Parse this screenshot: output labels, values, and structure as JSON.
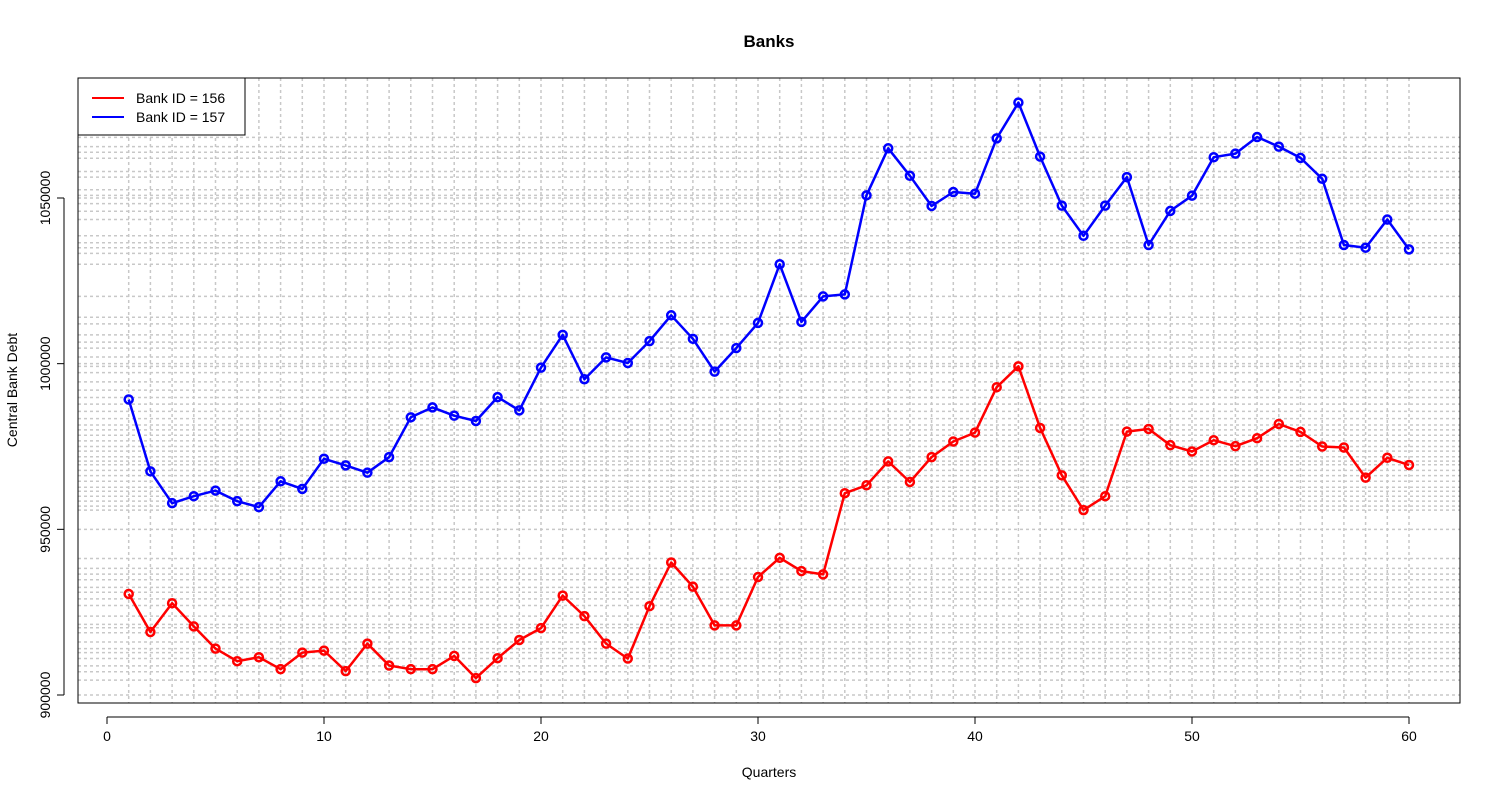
{
  "chart_data": {
    "type": "line",
    "title": "Banks",
    "xlabel": "Quarters",
    "ylabel": "Central Bank Debt",
    "xlim": [
      0,
      63
    ],
    "ylim": [
      898000,
      1087000
    ],
    "x_ticks": [
      0,
      10,
      20,
      30,
      40,
      50,
      60
    ],
    "x_tick_labels": [
      "0",
      "10",
      "20",
      "30",
      "40",
      "50",
      "60"
    ],
    "y_ticks": [
      900000,
      950000,
      1000000,
      1050000
    ],
    "y_tick_labels": [
      "900000",
      "950000",
      "1000000",
      "1050000"
    ],
    "grid": true,
    "legend": {
      "position": "top-left",
      "entries": [
        "Bank ID = 156",
        "Bank ID = 157"
      ]
    },
    "x": [
      1,
      2,
      3,
      4,
      5,
      6,
      7,
      8,
      9,
      10,
      11,
      12,
      13,
      14,
      15,
      16,
      17,
      18,
      19,
      20,
      21,
      22,
      23,
      24,
      25,
      26,
      27,
      28,
      29,
      30,
      31,
      32,
      33,
      34,
      35,
      36,
      37,
      38,
      39,
      40,
      41,
      42,
      43,
      44,
      45,
      46,
      47,
      48,
      49,
      50,
      51,
      52,
      53,
      54,
      55,
      56,
      57,
      58,
      59,
      60
    ],
    "series": [
      {
        "name": "Bank ID = 156",
        "color": "#ff0000",
        "values": [
          930500,
          919000,
          927700,
          920700,
          914000,
          910200,
          911400,
          907800,
          912800,
          913400,
          907200,
          915500,
          908900,
          907800,
          907800,
          911800,
          905100,
          911100,
          916600,
          920200,
          930000,
          923800,
          915500,
          911000,
          926800,
          940000,
          932700,
          921000,
          921000,
          935600,
          941400,
          937400,
          936400,
          960900,
          963300,
          970500,
          964300,
          971800,
          976500,
          979200,
          992900,
          999200,
          980600,
          966300,
          955800,
          960000,
          979500,
          980300,
          975400,
          973500,
          976900,
          975100,
          977500,
          981800,
          979400,
          975000,
          974700,
          965600,
          971600,
          969400
        ]
      },
      {
        "name": "Bank ID = 157",
        "color": "#0000ff",
        "values": [
          989200,
          967500,
          957900,
          960000,
          961700,
          958500,
          956700,
          964500,
          962200,
          971300,
          969300,
          967100,
          971800,
          983800,
          986800,
          984300,
          982700,
          989900,
          985900,
          998800,
          1008700,
          995300,
          1001900,
          1000200,
          1006800,
          1014600,
          1007500,
          997600,
          1004700,
          1012300,
          1030000,
          1012600,
          1020300,
          1020900,
          1050800,
          1065000,
          1056700,
          1047600,
          1051800,
          1051300,
          1068000,
          1078800,
          1062500,
          1047700,
          1038600,
          1047700,
          1056300,
          1035800,
          1046100,
          1050700,
          1062300,
          1063400,
          1068400,
          1065500,
          1062100,
          1055800,
          1035800,
          1035000,
          1043500,
          1034500
        ]
      }
    ],
    "extra_h_grid": [
      904500,
      907000,
      908800,
      911000,
      912800,
      914000,
      916000,
      918800,
      920300,
      921300,
      923800,
      927000,
      929000,
      931000,
      932500,
      934800,
      936500,
      938200,
      941200,
      955800,
      957000,
      958500,
      960000,
      961500,
      962700,
      964500,
      966200,
      967800,
      969500,
      970600,
      971900,
      973600,
      975000,
      976700,
      978400,
      980000,
      981500,
      983400,
      985600,
      987800,
      989800,
      992000,
      994500,
      997300,
      999200,
      1002000,
      1004700,
      1006500,
      1008700,
      1012000,
      1014000,
      1020300,
      1030000,
      1033300,
      1035000,
      1036500,
      1038600,
      1043500,
      1046000,
      1048300,
      1050800,
      1052500,
      1056300,
      1058000,
      1062000,
      1063800,
      1065500,
      1068300
    ]
  }
}
